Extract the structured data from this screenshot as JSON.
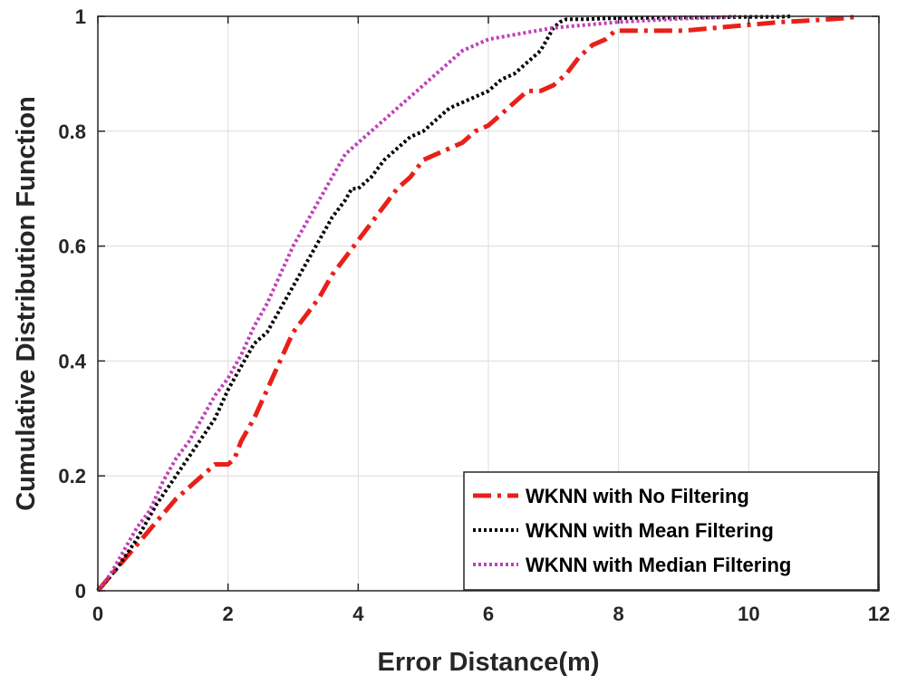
{
  "chart_data": {
    "type": "line",
    "title": "",
    "xlabel": "Error Distance(m)",
    "ylabel": "Cumulative Distribution Function",
    "xlim": [
      0,
      12
    ],
    "ylim": [
      0,
      1
    ],
    "xticks": [
      0,
      2,
      4,
      6,
      8,
      10,
      12
    ],
    "yticks": [
      0,
      0.2,
      0.4,
      0.6,
      0.8,
      1
    ],
    "xtick_labels": [
      "0",
      "2",
      "4",
      "6",
      "8",
      "10",
      "12"
    ],
    "ytick_labels": [
      "0",
      "0.2",
      "0.4",
      "0.6",
      "0.8",
      "1"
    ],
    "grid": true,
    "legend_position": "bottom-right",
    "series": [
      {
        "name": "WKNN with No Filtering",
        "color": "#e8201a",
        "style": "dash-dot",
        "x": [
          0,
          0.3,
          0.6,
          0.9,
          1.2,
          1.5,
          1.8,
          2.0,
          2.1,
          2.2,
          2.4,
          2.6,
          2.8,
          3.0,
          3.2,
          3.4,
          3.6,
          3.8,
          4.0,
          4.2,
          4.4,
          4.6,
          4.8,
          5.0,
          5.2,
          5.4,
          5.6,
          5.8,
          6.0,
          6.2,
          6.4,
          6.6,
          6.8,
          7.0,
          7.2,
          7.4,
          7.6,
          7.8,
          7.95,
          8.5,
          9.0,
          9.5,
          10.0,
          10.5,
          11.0,
          11.5,
          11.7
        ],
        "y": [
          0,
          0.04,
          0.08,
          0.12,
          0.16,
          0.19,
          0.22,
          0.22,
          0.23,
          0.26,
          0.3,
          0.35,
          0.4,
          0.45,
          0.48,
          0.51,
          0.55,
          0.58,
          0.61,
          0.64,
          0.67,
          0.7,
          0.72,
          0.75,
          0.76,
          0.77,
          0.78,
          0.8,
          0.81,
          0.83,
          0.85,
          0.87,
          0.87,
          0.88,
          0.9,
          0.93,
          0.95,
          0.96,
          0.975,
          0.975,
          0.975,
          0.98,
          0.985,
          0.99,
          0.993,
          0.997,
          1.0
        ]
      },
      {
        "name": "WKNN with Mean Filtering",
        "color": "#000000",
        "style": "dotted",
        "x": [
          0,
          0.3,
          0.6,
          0.9,
          1.2,
          1.5,
          1.8,
          2.0,
          2.2,
          2.4,
          2.6,
          2.8,
          3.0,
          3.2,
          3.4,
          3.6,
          3.8,
          3.9,
          4.0,
          4.2,
          4.4,
          4.6,
          4.8,
          5.0,
          5.2,
          5.4,
          5.6,
          5.8,
          6.0,
          6.2,
          6.4,
          6.6,
          6.8,
          6.9,
          7.0,
          7.05,
          7.1,
          7.2,
          7.5,
          8.0,
          8.5,
          9.0,
          9.5,
          10.0,
          10.5,
          10.65
        ],
        "y": [
          0,
          0.04,
          0.09,
          0.15,
          0.2,
          0.25,
          0.3,
          0.35,
          0.39,
          0.43,
          0.45,
          0.49,
          0.53,
          0.57,
          0.61,
          0.65,
          0.68,
          0.7,
          0.7,
          0.72,
          0.75,
          0.77,
          0.79,
          0.8,
          0.82,
          0.84,
          0.85,
          0.86,
          0.87,
          0.89,
          0.9,
          0.92,
          0.94,
          0.96,
          0.98,
          0.985,
          0.99,
          0.995,
          0.995,
          0.997,
          0.997,
          0.998,
          0.998,
          0.999,
          0.999,
          1.0
        ]
      },
      {
        "name": "WKNN with Median Filtering",
        "color": "#c040b8",
        "style": "dotted",
        "x": [
          0,
          0.2,
          0.4,
          0.6,
          0.8,
          1.0,
          1.2,
          1.4,
          1.6,
          1.8,
          2.0,
          2.2,
          2.4,
          2.6,
          2.8,
          3.0,
          3.2,
          3.4,
          3.6,
          3.8,
          4.0,
          4.2,
          4.4,
          4.6,
          4.8,
          5.0,
          5.2,
          5.4,
          5.6,
          5.8,
          6.0,
          6.5,
          7.0,
          7.5,
          8.0,
          8.5,
          9.0,
          9.5,
          9.8
        ],
        "y": [
          0,
          0.03,
          0.07,
          0.11,
          0.14,
          0.19,
          0.23,
          0.26,
          0.3,
          0.34,
          0.37,
          0.41,
          0.46,
          0.5,
          0.55,
          0.6,
          0.64,
          0.68,
          0.72,
          0.76,
          0.78,
          0.8,
          0.82,
          0.84,
          0.86,
          0.88,
          0.9,
          0.92,
          0.94,
          0.95,
          0.96,
          0.97,
          0.98,
          0.985,
          0.99,
          0.993,
          0.996,
          0.998,
          1.0
        ]
      }
    ]
  }
}
